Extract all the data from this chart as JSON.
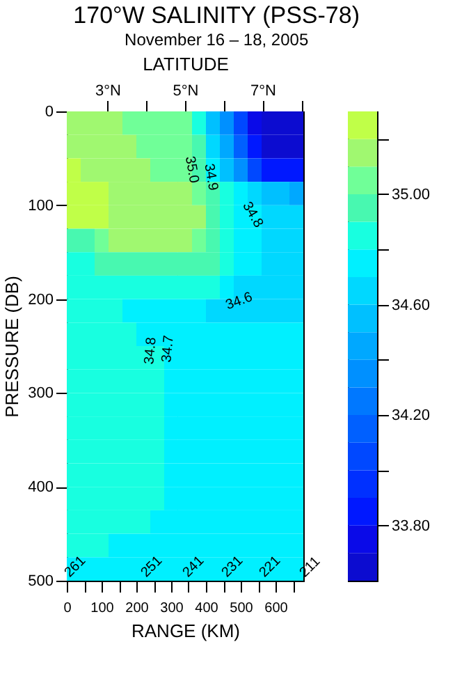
{
  "chart_data": {
    "type": "heatmap",
    "title": "170°W SALINITY (PSS-78)",
    "subtitle": "November 16 – 18, 2005",
    "xlabel": "RANGE (KM)",
    "ylabel": "PRESSURE (DB)",
    "x2label": "LATITUDE",
    "x": [
      20,
      60,
      100,
      140,
      180,
      220,
      260,
      300,
      340,
      380,
      420,
      460,
      500,
      540,
      580,
      620,
      660
    ],
    "y": [
      12.5,
      37.5,
      62.5,
      87.5,
      112.5,
      137.5,
      162.5,
      187.5,
      212.5,
      237.5,
      262.5,
      287.5,
      312.5,
      337.5,
      362.5,
      387.5,
      412.5,
      437.5,
      462.5,
      487.5
    ],
    "cells": [
      [
        35.15,
        35.15,
        35.15,
        35.15,
        35.05,
        35.05,
        35.05,
        35.05,
        35.05,
        34.85,
        34.55,
        34.35,
        34.05,
        33.75,
        33.65,
        33.65,
        33.65
      ],
      [
        35.15,
        35.15,
        35.15,
        35.15,
        35.15,
        35.05,
        35.05,
        35.05,
        35.05,
        34.95,
        34.65,
        34.45,
        34.15,
        33.85,
        33.65,
        33.65,
        33.65
      ],
      [
        35.25,
        35.15,
        35.15,
        35.15,
        35.15,
        35.15,
        35.05,
        35.05,
        35.05,
        34.95,
        34.75,
        34.55,
        34.35,
        34.05,
        33.85,
        33.85,
        33.85
      ],
      [
        35.25,
        35.25,
        35.25,
        35.15,
        35.15,
        35.15,
        35.15,
        35.15,
        35.15,
        35.05,
        34.95,
        34.85,
        34.75,
        34.65,
        34.55,
        34.55,
        34.45
      ],
      [
        35.25,
        35.25,
        35.25,
        35.15,
        35.15,
        35.15,
        35.15,
        35.15,
        35.15,
        35.15,
        34.95,
        34.85,
        34.75,
        34.75,
        34.65,
        34.65,
        34.65
      ],
      [
        34.95,
        34.95,
        35.05,
        35.15,
        35.15,
        35.15,
        35.15,
        35.15,
        35.15,
        35.05,
        34.95,
        34.85,
        34.75,
        34.75,
        34.65,
        34.65,
        34.65
      ],
      [
        34.85,
        34.85,
        34.95,
        34.95,
        34.95,
        34.95,
        34.95,
        34.95,
        34.95,
        34.95,
        34.95,
        34.85,
        34.75,
        34.75,
        34.65,
        34.65,
        34.65
      ],
      [
        34.85,
        34.85,
        34.85,
        34.85,
        34.85,
        34.85,
        34.85,
        34.85,
        34.85,
        34.85,
        34.85,
        34.75,
        34.65,
        34.65,
        34.65,
        34.65,
        34.65
      ],
      [
        34.85,
        34.85,
        34.85,
        34.85,
        34.75,
        34.75,
        34.75,
        34.75,
        34.75,
        34.75,
        34.65,
        34.65,
        34.65,
        34.65,
        34.65,
        34.65,
        34.65
      ],
      [
        34.85,
        34.85,
        34.85,
        34.85,
        34.85,
        34.75,
        34.75,
        34.75,
        34.75,
        34.75,
        34.75,
        34.75,
        34.75,
        34.75,
        34.75,
        34.75,
        34.75
      ],
      [
        34.85,
        34.85,
        34.85,
        34.85,
        34.85,
        34.85,
        34.85,
        34.75,
        34.75,
        34.75,
        34.75,
        34.75,
        34.75,
        34.75,
        34.75,
        34.75,
        34.75
      ],
      [
        34.85,
        34.85,
        34.85,
        34.85,
        34.85,
        34.85,
        34.85,
        34.75,
        34.75,
        34.75,
        34.75,
        34.75,
        34.75,
        34.75,
        34.75,
        34.75,
        34.75
      ],
      [
        34.85,
        34.85,
        34.85,
        34.85,
        34.85,
        34.85,
        34.85,
        34.75,
        34.75,
        34.75,
        34.75,
        34.75,
        34.75,
        34.75,
        34.75,
        34.75,
        34.75
      ],
      [
        34.85,
        34.85,
        34.85,
        34.85,
        34.85,
        34.85,
        34.85,
        34.75,
        34.75,
        34.75,
        34.75,
        34.75,
        34.75,
        34.75,
        34.75,
        34.75,
        34.75
      ],
      [
        34.85,
        34.85,
        34.85,
        34.85,
        34.85,
        34.85,
        34.85,
        34.75,
        34.75,
        34.75,
        34.75,
        34.75,
        34.75,
        34.75,
        34.75,
        34.75,
        34.75
      ],
      [
        34.85,
        34.85,
        34.85,
        34.85,
        34.85,
        34.85,
        34.85,
        34.75,
        34.75,
        34.75,
        34.75,
        34.75,
        34.75,
        34.75,
        34.75,
        34.75,
        34.75
      ],
      [
        34.85,
        34.85,
        34.85,
        34.85,
        34.85,
        34.85,
        34.85,
        34.75,
        34.75,
        34.75,
        34.75,
        34.75,
        34.75,
        34.75,
        34.75,
        34.75,
        34.75
      ],
      [
        34.85,
        34.85,
        34.85,
        34.85,
        34.85,
        34.85,
        34.75,
        34.75,
        34.75,
        34.75,
        34.75,
        34.75,
        34.75,
        34.75,
        34.75,
        34.75,
        34.75
      ],
      [
        34.85,
        34.85,
        34.85,
        34.75,
        34.75,
        34.75,
        34.75,
        34.75,
        34.75,
        34.75,
        34.75,
        34.75,
        34.75,
        34.75,
        34.75,
        34.75,
        34.75
      ],
      [
        34.75,
        34.75,
        34.75,
        34.75,
        34.75,
        34.75,
        34.75,
        34.75,
        34.75,
        34.75,
        34.75,
        34.75,
        34.75,
        34.75,
        34.75,
        34.75,
        34.75
      ]
    ],
    "colors": [
      "#0c0cd0",
      "#0a0ae8",
      "#0018ff",
      "#0030ff",
      "#0048ff",
      "#0060ff",
      "#0078ff",
      "#0090ff",
      "#00a8ff",
      "#00c0ff",
      "#00d8ff",
      "#00f0ff",
      "#18ffe0",
      "#48f8b0",
      "#70ff98",
      "#a0f870",
      "#c0ff48"
    ],
    "clim": [
      33.6,
      35.3
    ],
    "cticks": [
      {
        "value": 33.8,
        "label": "33.80"
      },
      {
        "value": 34.0,
        "label": null
      },
      {
        "value": 34.2,
        "label": "34.20"
      },
      {
        "value": 34.4,
        "label": null
      },
      {
        "value": 34.6,
        "label": "34.60"
      },
      {
        "value": 34.8,
        "label": null
      },
      {
        "value": 35.0,
        "label": "35.00"
      },
      {
        "value": 35.2,
        "label": null
      }
    ],
    "xlim": [
      0,
      680
    ],
    "xticks": [
      0,
      {
        "value": 50,
        "label": null
      },
      100,
      {
        "value": 150,
        "label": null
      },
      200,
      {
        "value": 250,
        "label": null
      },
      300,
      {
        "value": 350,
        "label": null
      },
      400,
      {
        "value": 450,
        "label": null
      },
      500,
      {
        "value": 550,
        "label": null
      },
      600,
      {
        "value": 650,
        "label": null
      }
    ],
    "x2lim": [
      1.95,
      8.05
    ],
    "x2ticks": [
      {
        "value": 3,
        "label": "3°N"
      },
      {
        "value": 4,
        "label": null
      },
      {
        "value": 5,
        "label": "5°N"
      },
      {
        "value": 6,
        "label": null
      },
      {
        "value": 7,
        "label": "7°N"
      },
      {
        "value": 8,
        "label": null
      }
    ],
    "ylim": [
      500,
      0
    ],
    "yticks": [
      0,
      100,
      200,
      300,
      400,
      500
    ],
    "grid": false,
    "legend": false,
    "annotations": [
      "35.0",
      "34.9",
      "34.8",
      "34.6",
      "34.8",
      "34.7",
      "261",
      "251",
      "241",
      "231",
      "221",
      "211"
    ]
  }
}
